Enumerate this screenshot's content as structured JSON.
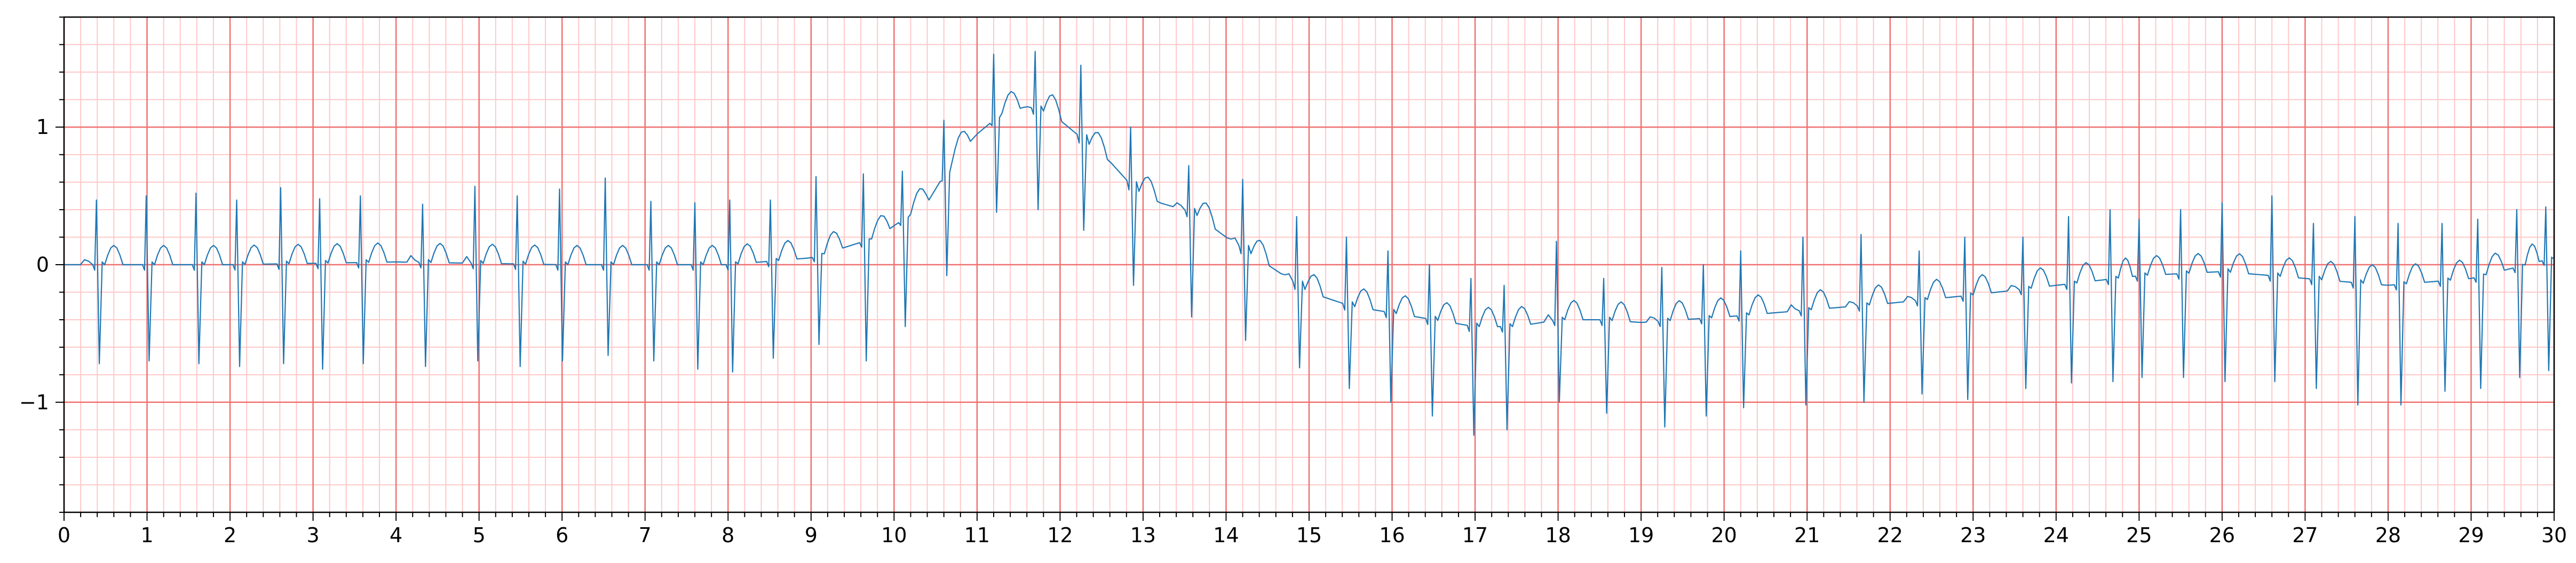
{
  "chart_data": {
    "type": "line",
    "title": "",
    "xlabel": "",
    "ylabel": "",
    "xlim": [
      0,
      30
    ],
    "ylim": [
      -1.8,
      1.8
    ],
    "grid": true,
    "legend": "none",
    "colors": {
      "trace": "#1f77b4",
      "grid_major": "#f07070",
      "grid_minor": "#ffc8c8",
      "frame": "#000000"
    },
    "x_tick_labels": [
      "0",
      "1",
      "2",
      "3",
      "4",
      "5",
      "6",
      "7",
      "8",
      "9",
      "10",
      "11",
      "12",
      "13",
      "14",
      "15",
      "16",
      "17",
      "18",
      "19",
      "20",
      "21",
      "22",
      "23",
      "24",
      "25",
      "26",
      "27",
      "28",
      "29",
      "30"
    ],
    "y_tick_labels": [
      {
        "value": 1,
        "label": "1"
      },
      {
        "value": 0,
        "label": "0"
      },
      {
        "value": -1,
        "label": "−1"
      }
    ],
    "series": [
      {
        "baseline_knots": {
          "x": [
            0,
            2,
            4,
            6,
            8,
            9,
            9.8,
            10.4,
            10.7,
            11,
            11.3,
            11.6,
            11.9,
            12.2,
            12.6,
            12.9,
            13.2,
            13.6,
            14,
            14.5,
            15,
            15.5,
            16,
            16.5,
            17,
            17.5,
            18,
            18.5,
            19,
            19.5,
            20,
            21,
            22,
            23,
            24,
            25,
            26,
            27,
            28,
            29,
            30
          ],
          "y": [
            0.0,
            0.0,
            0.02,
            0.0,
            0.0,
            0.05,
            0.2,
            0.45,
            0.75,
            0.95,
            1.1,
            1.15,
            1.1,
            0.95,
            0.75,
            0.55,
            0.45,
            0.38,
            0.2,
            0.0,
            -0.2,
            -0.3,
            -0.35,
            -0.4,
            -0.45,
            -0.45,
            -0.4,
            -0.4,
            -0.42,
            -0.4,
            -0.38,
            -0.33,
            -0.28,
            -0.22,
            -0.15,
            -0.08,
            -0.05,
            -0.1,
            -0.15,
            -0.1,
            0.05
          ]
        },
        "beats": [
          {
            "t": 0.39,
            "r": 0.47,
            "s": -0.72
          },
          {
            "t": 0.99,
            "r": 0.5,
            "s": -0.7
          },
          {
            "t": 1.59,
            "r": 0.52,
            "s": -0.72
          },
          {
            "t": 2.08,
            "r": 0.47,
            "s": -0.74
          },
          {
            "t": 2.61,
            "r": 0.56,
            "s": -0.72
          },
          {
            "t": 3.08,
            "r": 0.48,
            "s": -0.76
          },
          {
            "t": 3.57,
            "r": 0.5,
            "s": -0.72
          },
          {
            "t": 4.32,
            "r": 0.44,
            "s": -0.74
          },
          {
            "t": 4.95,
            "r": 0.57,
            "s": -0.7
          },
          {
            "t": 5.46,
            "r": 0.5,
            "s": -0.74
          },
          {
            "t": 5.97,
            "r": 0.55,
            "s": -0.7
          },
          {
            "t": 6.52,
            "r": 0.63,
            "s": -0.66
          },
          {
            "t": 7.07,
            "r": 0.46,
            "s": -0.7
          },
          {
            "t": 7.6,
            "r": 0.45,
            "s": -0.76
          },
          {
            "t": 8.02,
            "r": 0.47,
            "s": -0.78
          },
          {
            "t": 8.51,
            "r": 0.47,
            "s": -0.68
          },
          {
            "t": 9.06,
            "r": 0.64,
            "s": -0.58
          },
          {
            "t": 9.63,
            "r": 0.66,
            "s": -0.7
          },
          {
            "t": 10.1,
            "r": 0.68,
            "s": -0.45
          },
          {
            "t": 10.6,
            "r": 1.05,
            "s": -0.08
          },
          {
            "t": 11.2,
            "r": 1.53,
            "s": 0.38
          },
          {
            "t": 11.7,
            "r": 1.55,
            "s": 0.4
          },
          {
            "t": 12.25,
            "r": 1.45,
            "s": 0.25
          },
          {
            "t": 12.85,
            "r": 1.0,
            "s": -0.15
          },
          {
            "t": 13.55,
            "r": 0.72,
            "s": -0.38
          },
          {
            "t": 14.2,
            "r": 0.62,
            "s": -0.55
          },
          {
            "t": 14.85,
            "r": 0.35,
            "s": -0.75
          },
          {
            "t": 15.45,
            "r": 0.2,
            "s": -0.9
          },
          {
            "t": 15.95,
            "r": 0.1,
            "s": -1.0
          },
          {
            "t": 16.45,
            "r": 0.0,
            "s": -1.1
          },
          {
            "t": 16.95,
            "r": -0.1,
            "s": -1.24
          },
          {
            "t": 17.35,
            "r": -0.15,
            "s": -1.2
          },
          {
            "t": 17.98,
            "r": 0.17,
            "s": -1.0
          },
          {
            "t": 18.55,
            "r": -0.1,
            "s": -1.08
          },
          {
            "t": 19.25,
            "r": -0.02,
            "s": -1.18
          },
          {
            "t": 19.75,
            "r": 0.0,
            "s": -1.1
          },
          {
            "t": 20.2,
            "r": 0.1,
            "s": -1.04
          },
          {
            "t": 20.95,
            "r": 0.2,
            "s": -1.02
          },
          {
            "t": 21.65,
            "r": 0.22,
            "s": -1.0
          },
          {
            "t": 22.35,
            "r": 0.1,
            "s": -0.94
          },
          {
            "t": 22.9,
            "r": 0.2,
            "s": -0.98
          },
          {
            "t": 23.6,
            "r": 0.2,
            "s": -0.9
          },
          {
            "t": 24.15,
            "r": 0.35,
            "s": -0.86
          },
          {
            "t": 24.65,
            "r": 0.4,
            "s": -0.85
          },
          {
            "t": 25.0,
            "r": 0.33,
            "s": -0.82
          },
          {
            "t": 25.5,
            "r": 0.4,
            "s": -0.82
          },
          {
            "t": 26.0,
            "r": 0.45,
            "s": -0.85
          },
          {
            "t": 26.6,
            "r": 0.5,
            "s": -0.85
          },
          {
            "t": 27.1,
            "r": 0.3,
            "s": -0.9
          },
          {
            "t": 27.6,
            "r": 0.35,
            "s": -1.02
          },
          {
            "t": 28.12,
            "r": 0.3,
            "s": -1.02
          },
          {
            "t": 28.65,
            "r": 0.3,
            "s": -0.92
          },
          {
            "t": 29.08,
            "r": 0.33,
            "s": -0.9
          },
          {
            "t": 29.55,
            "r": 0.4,
            "s": -0.82
          },
          {
            "t": 29.9,
            "r": 0.42,
            "s": -0.77
          }
        ]
      }
    ]
  }
}
